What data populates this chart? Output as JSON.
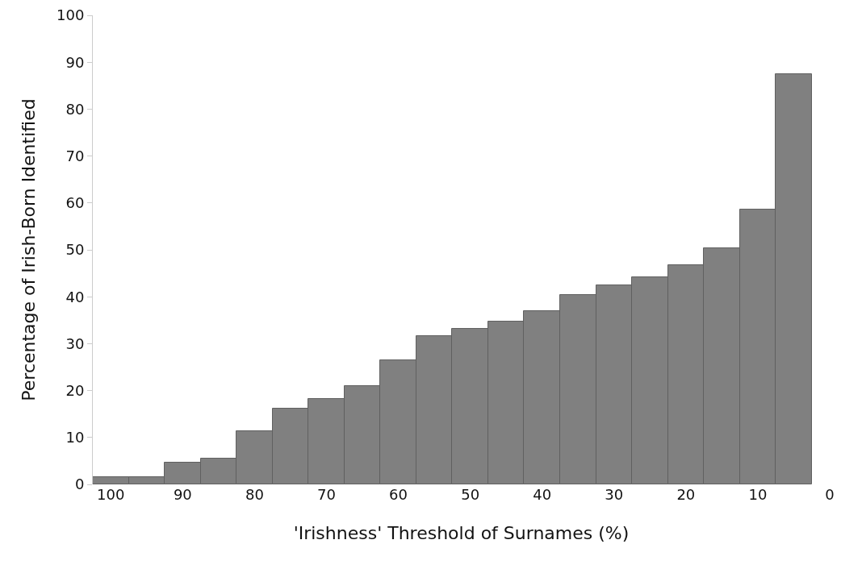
{
  "chart_data": {
    "type": "bar",
    "xlabel": "'Irishness' Threshold of Surnames (%)",
    "ylabel": "Percentage of Irish-Born Identified",
    "x": [
      100,
      95,
      90,
      85,
      80,
      75,
      70,
      65,
      60,
      55,
      50,
      45,
      40,
      35,
      30,
      25,
      20,
      15,
      10,
      5
    ],
    "values": [
      1.5,
      1.5,
      4.7,
      5.5,
      11.4,
      16.1,
      18.2,
      20.9,
      26.4,
      31.6,
      33.1,
      34.7,
      36.9,
      40.3,
      42.4,
      44.2,
      46.8,
      50.3,
      58.6,
      87.5
    ],
    "color": "#808080",
    "xlim": [
      102.5,
      0
    ],
    "xticks": [
      100,
      90,
      80,
      70,
      60,
      50,
      40,
      30,
      20,
      10,
      0
    ],
    "ylim": [
      0,
      100
    ],
    "yticks": [
      0,
      10,
      20,
      30,
      40,
      50,
      60,
      70,
      80,
      90,
      100
    ]
  }
}
